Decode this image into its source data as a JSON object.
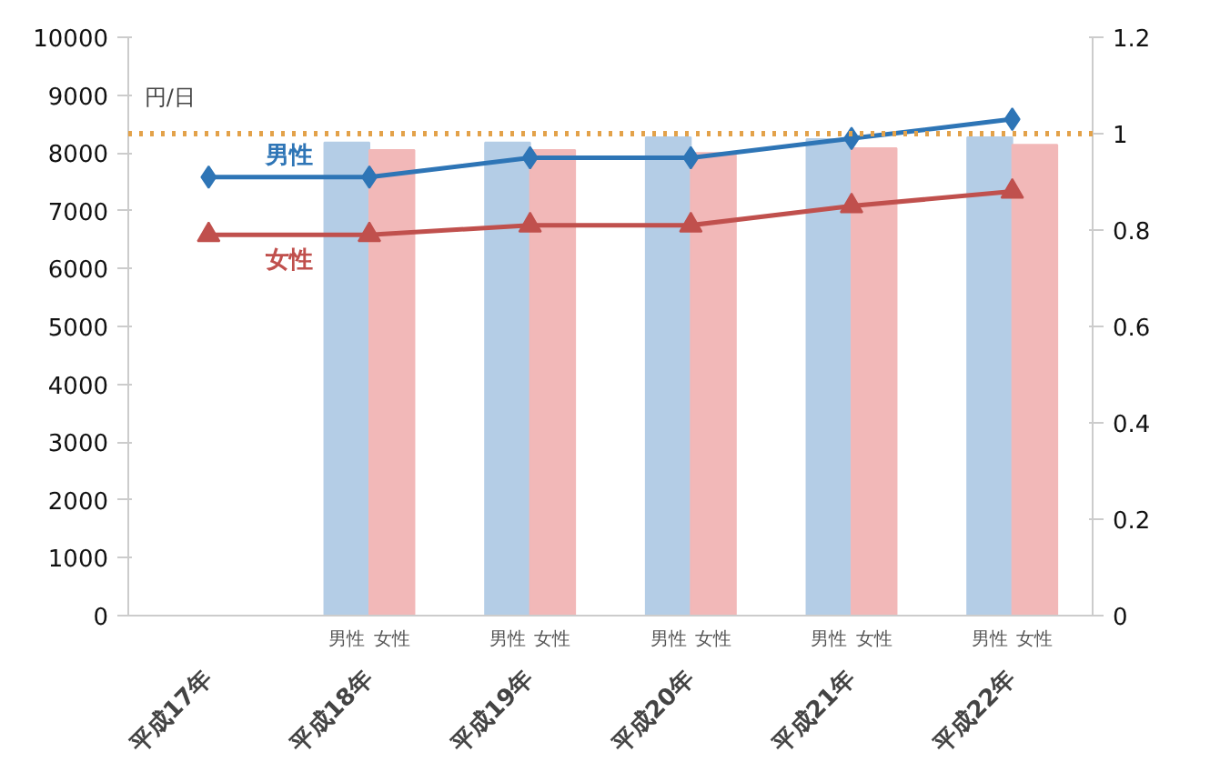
{
  "chart_data": {
    "type": "bar",
    "ylabel": "円/日",
    "categories": [
      "平成17年",
      "平成18年",
      "平成19年",
      "平成20年",
      "平成21年",
      "平成22年"
    ],
    "series": [
      {
        "name": "男性",
        "color": "#b4cde6",
        "values": [
          null,
          8180,
          8180,
          8270,
          8240,
          8270
        ]
      },
      {
        "name": "女性",
        "color": "#f2b8b8",
        "values": [
          null,
          8050,
          8050,
          8000,
          8080,
          8140
        ]
      },
      {
        "name": "男性",
        "type": "line",
        "axis": "y2",
        "marker": "diamond",
        "color": "#2e75b6",
        "values": [
          0.91,
          0.91,
          0.95,
          0.95,
          0.99,
          1.03
        ]
      },
      {
        "name": "女性",
        "type": "line",
        "axis": "y2",
        "marker": "triangle",
        "color": "#c0504d",
        "values": [
          0.79,
          0.79,
          0.81,
          0.81,
          0.85,
          0.88
        ]
      }
    ],
    "ylim": [
      0,
      10000
    ],
    "yticks": [
      0,
      1000,
      2000,
      3000,
      4000,
      5000,
      6000,
      7000,
      8000,
      9000,
      10000
    ],
    "y2lim": [
      0,
      1.2
    ],
    "y2ticks": [
      0,
      {
        "value": 0.2,
        "label": "0.2"
      },
      {
        "value": 0.4,
        "label": "0.4"
      },
      {
        "value": 0.6,
        "label": "0.6"
      },
      {
        "value": 0.8,
        "label": "0.8"
      },
      1,
      {
        "value": 1.2,
        "label": "1.2"
      }
    ],
    "ref_lines": [
      {
        "axis": "y2",
        "value": 1,
        "color": "#e3a24a",
        "line_style": "dotted"
      }
    ],
    "grid": false
  }
}
